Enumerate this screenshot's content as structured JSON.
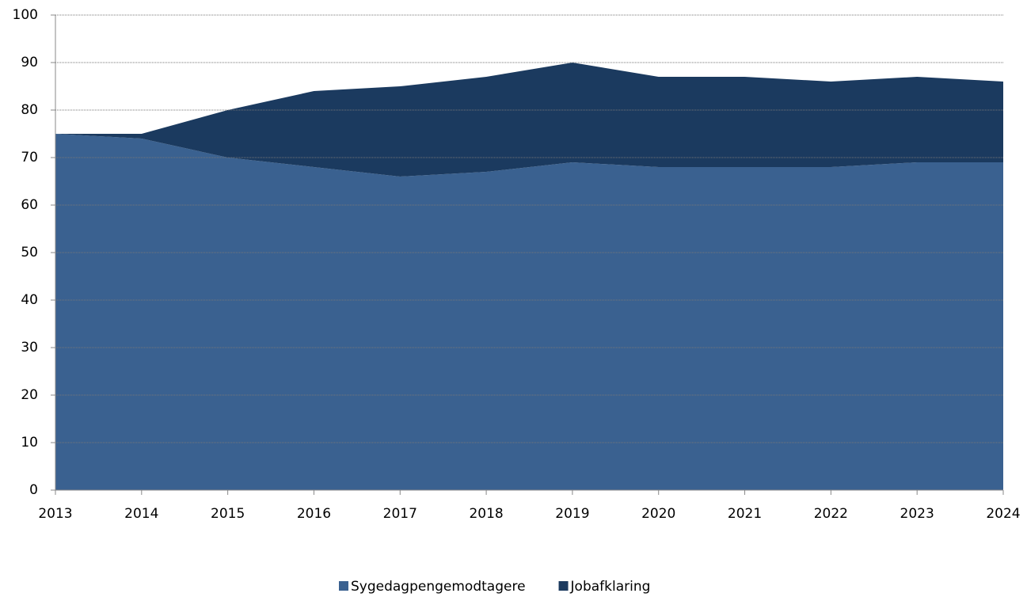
{
  "chart_data": {
    "type": "stacked_area",
    "x": [
      2013,
      2014,
      2015,
      2016,
      2017,
      2018,
      2019,
      2020,
      2021,
      2022,
      2023,
      2024
    ],
    "xlim": [
      2013,
      2024
    ],
    "xticks": [
      2013,
      2014,
      2015,
      2016,
      2017,
      2018,
      2019,
      2020,
      2021,
      2022,
      2023,
      2024
    ],
    "series": [
      {
        "name": "Sygedagpengemodtagere",
        "color": "#3a6190",
        "values": [
          75,
          74,
          70,
          68,
          66,
          67,
          69,
          68,
          68,
          68,
          69,
          69
        ]
      },
      {
        "name": "Jobafklaring",
        "color": "#1b3a5f",
        "values": [
          0,
          1,
          10,
          16,
          19,
          20,
          21,
          19,
          19,
          18,
          18,
          17
        ]
      }
    ],
    "ylim": [
      0,
      100
    ],
    "yticks": [
      0,
      10,
      20,
      30,
      40,
      50,
      60,
      70,
      80,
      90,
      100
    ],
    "grid": true,
    "legend": "bottom"
  }
}
